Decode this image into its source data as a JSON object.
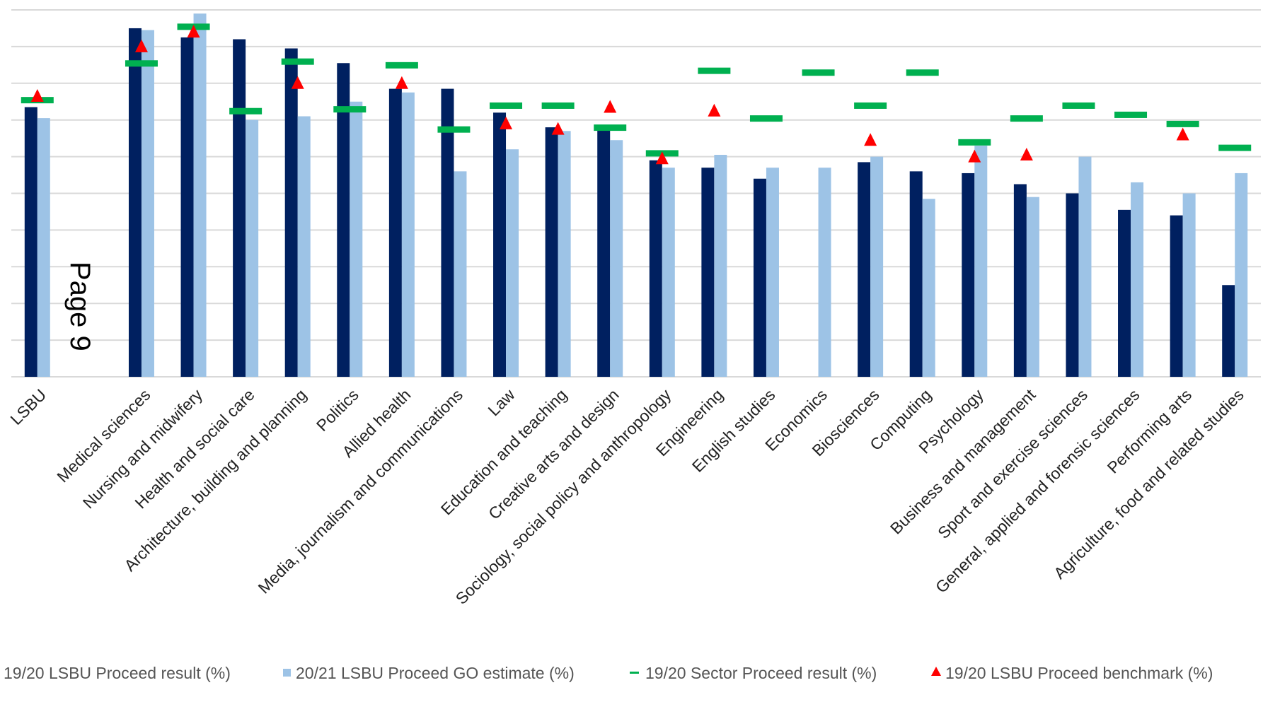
{
  "page_marker": "Page 9",
  "colors": {
    "proceed_1920": "#002060",
    "go_2021": "#9dc3e6",
    "sector_1920": "#00b050",
    "benchmark_1920": "#ff0000",
    "grid": "#d9d9d9"
  },
  "legend": [
    {
      "label": "19/20 LSBU Proceed result (%)",
      "marker": "bar-dark"
    },
    {
      "label": "20/21 LSBU Proceed GO estimate (%)",
      "marker": "bar-light"
    },
    {
      "label": "19/20 Sector Proceed result (%)",
      "marker": "dash"
    },
    {
      "label": "19/20 LSBU Proceed benchmark (%)",
      "marker": "triangle"
    }
  ],
  "chart_data": {
    "type": "bar",
    "title": "",
    "xlabel": "",
    "ylabel": "",
    "ylim": [
      0,
      100
    ],
    "grid": true,
    "gridlines": 10,
    "y_tick_labels_shown": false,
    "legend_position": "bottom",
    "categories": [
      "LSBU",
      "",
      "Medical sciences",
      "Nursing and midwifery",
      "Health and social care",
      "Architecture, building and planning",
      "Politics",
      "Allied health",
      "Media, journalism and communications",
      "Law",
      "Education and teaching",
      "Creative arts and design",
      "Sociology, social policy and anthropology",
      "Engineering",
      "English studies",
      "Economics",
      "Biosciences",
      "Computing",
      "Psychology",
      "Business and management",
      "Sport and exercise sciences",
      "General, applied and forensic sciences",
      "Performing arts",
      "Agriculture, food and related studies"
    ],
    "series": [
      {
        "name": "19/20 LSBU Proceed result (%)",
        "kind": "bar",
        "values": [
          73.5,
          null,
          95.0,
          92.5,
          92.0,
          89.5,
          85.5,
          78.5,
          78.5,
          72.0,
          68.0,
          68.0,
          59.0,
          57.0,
          54.0,
          null,
          58.5,
          56.0,
          55.5,
          52.5,
          50.0,
          45.5,
          44.0,
          25.0
        ]
      },
      {
        "name": "20/21 LSBU Proceed GO estimate (%)",
        "kind": "bar",
        "values": [
          70.5,
          null,
          94.5,
          99.0,
          70.0,
          71.0,
          75.0,
          77.5,
          56.0,
          62.0,
          67.0,
          64.5,
          57.0,
          60.5,
          57.0,
          57.0,
          60.0,
          48.5,
          63.0,
          49.0,
          60.0,
          53.0,
          50.0,
          55.5
        ]
      },
      {
        "name": "19/20 Sector Proceed result (%)",
        "kind": "dash",
        "values": [
          75.5,
          null,
          85.5,
          95.5,
          72.5,
          86.0,
          73.0,
          85.0,
          67.5,
          74.0,
          74.0,
          68.0,
          61.0,
          83.5,
          70.5,
          83.0,
          74.0,
          83.0,
          64.0,
          70.5,
          74.0,
          71.5,
          69.0,
          62.5
        ]
      },
      {
        "name": "19/20 LSBU Proceed benchmark (%)",
        "kind": "triangle",
        "values": [
          76.5,
          null,
          90.0,
          94.0,
          null,
          80.0,
          null,
          80.0,
          null,
          69.0,
          67.5,
          73.5,
          59.5,
          72.5,
          null,
          null,
          64.5,
          null,
          60.0,
          60.5,
          null,
          null,
          66.0,
          null
        ]
      }
    ]
  }
}
